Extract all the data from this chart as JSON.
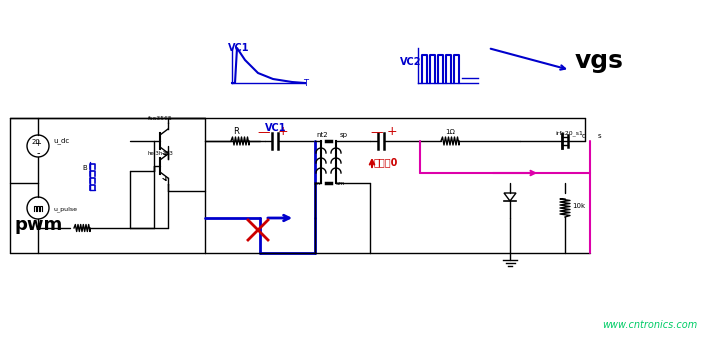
{
  "bg_color": "#ffffff",
  "watermark": "www.cntronics.com",
  "watermark_color": "#00cc66",
  "vgs_label": "vgs",
  "vc1_label": "VC1",
  "vc2_label": "VC2",
  "pwm_label": "pwm",
  "yadian_label": "壓差為0"
}
